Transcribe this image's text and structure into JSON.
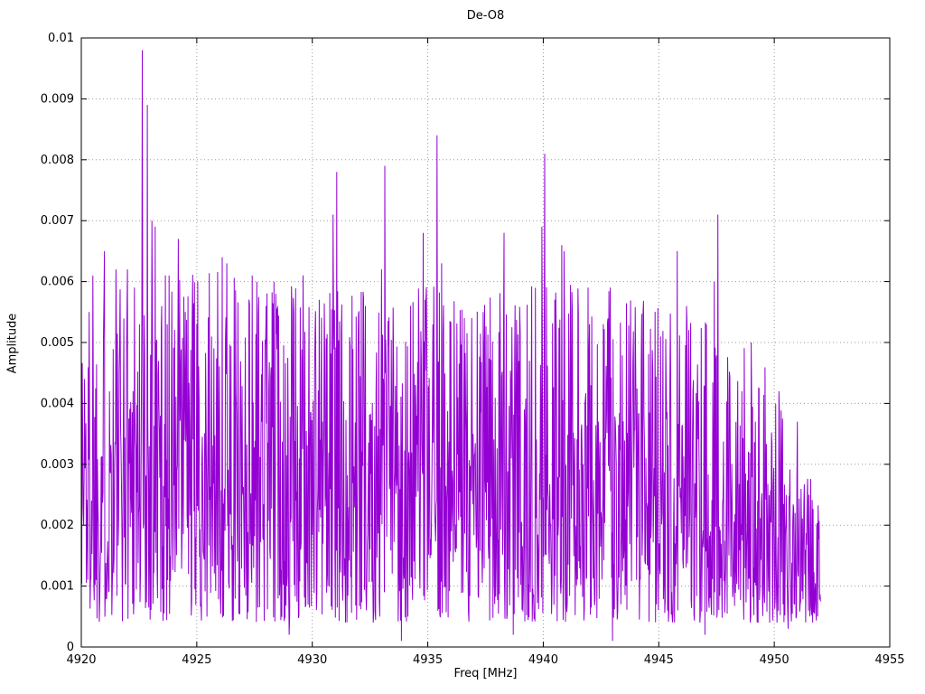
{
  "chart_data": {
    "type": "line",
    "title": "De-O8",
    "xlabel": "Freq [MHz]",
    "ylabel": "Amplitude",
    "xlim": [
      4920,
      4955
    ],
    "ylim": [
      0,
      0.01
    ],
    "xtick_values": [
      4920,
      4925,
      4930,
      4935,
      4940,
      4945,
      4950,
      4955
    ],
    "xtick_labels": [
      "4920",
      "4925",
      "4930",
      "4935",
      "4940",
      "4945",
      "4950",
      "4955"
    ],
    "ytick_values": [
      0,
      0.001,
      0.002,
      0.003,
      0.004,
      0.005,
      0.006,
      0.007,
      0.008,
      0.009,
      0.01
    ],
    "ytick_labels": [
      "0",
      "0.001",
      "0.002",
      "0.003",
      "0.004",
      "0.005",
      "0.006",
      "0.007",
      "0.008",
      "0.009",
      "0.01"
    ],
    "grid": true,
    "grid_style": "dotted",
    "grid_color": "#9a9a9a",
    "border_color": "#000000",
    "series_color": "#9400d3",
    "legend": "none",
    "x_start": 4920.0,
    "x_end": 4952.0,
    "x_step": 0.02,
    "noise": {
      "seed": 1337,
      "min": 0.0004,
      "exponent": 1.3,
      "envelope": [
        [
          4920.0,
          0.0056
        ],
        [
          4923.0,
          0.0058
        ],
        [
          4930.0,
          0.0057
        ],
        [
          4936.0,
          0.0055
        ],
        [
          4941.0,
          0.0056
        ],
        [
          4946.0,
          0.0052
        ],
        [
          4948.5,
          0.0048
        ],
        [
          4950.0,
          0.004
        ],
        [
          4951.0,
          0.0028
        ],
        [
          4952.0,
          0.0022
        ]
      ]
    },
    "key_points": [
      [
        4920.15,
        0.0044
      ],
      [
        4920.5,
        0.0061
      ],
      [
        4921.0,
        0.0065
      ],
      [
        4921.5,
        0.0062
      ],
      [
        4922.0,
        0.0062
      ],
      [
        4922.3,
        0.0059
      ],
      [
        4922.65,
        0.0098
      ],
      [
        4922.85,
        0.0089
      ],
      [
        4923.05,
        0.007
      ],
      [
        4923.2,
        0.0069
      ],
      [
        4923.8,
        0.0061
      ],
      [
        4924.2,
        0.0067
      ],
      [
        4924.5,
        0.0055
      ],
      [
        4925.0,
        0.0053
      ],
      [
        4926.1,
        0.0064
      ],
      [
        4926.3,
        0.0063
      ],
      [
        4927.4,
        0.0061
      ],
      [
        4927.6,
        0.006
      ],
      [
        4928.0,
        0.0056
      ],
      [
        4928.5,
        0.0056
      ],
      [
        4929.0,
        0.0002
      ],
      [
        4930.3,
        0.0057
      ],
      [
        4930.9,
        0.0071
      ],
      [
        4931.05,
        0.0078
      ],
      [
        4932.3,
        0.0056
      ],
      [
        4933.0,
        0.0062
      ],
      [
        4933.15,
        0.0079
      ],
      [
        4933.85,
        0.0001
      ],
      [
        4934.8,
        0.0068
      ],
      [
        4935.4,
        0.0084
      ],
      [
        4935.6,
        0.0063
      ],
      [
        4936.9,
        0.0054
      ],
      [
        4937.4,
        0.0055
      ],
      [
        4938.3,
        0.0068
      ],
      [
        4938.7,
        0.0002
      ],
      [
        4939.4,
        0.0047
      ],
      [
        4939.95,
        0.0069
      ],
      [
        4940.05,
        0.0081
      ],
      [
        4940.8,
        0.0066
      ],
      [
        4940.9,
        0.0065
      ],
      [
        4942.0,
        0.0053
      ],
      [
        4942.6,
        0.0053
      ],
      [
        4942.9,
        0.0059
      ],
      [
        4943.0,
        0.0001
      ],
      [
        4944.0,
        0.0047
      ],
      [
        4945.8,
        0.0065
      ],
      [
        4946.2,
        0.0056
      ],
      [
        4947.0,
        0.0002
      ],
      [
        4947.4,
        0.006
      ],
      [
        4947.55,
        0.0071
      ],
      [
        4948.6,
        0.0042
      ],
      [
        4949.0,
        0.005
      ],
      [
        4950.2,
        0.0042
      ],
      [
        4950.6,
        0.0003
      ],
      [
        4951.0,
        0.0037
      ],
      [
        4951.5,
        0.0025
      ]
    ]
  }
}
